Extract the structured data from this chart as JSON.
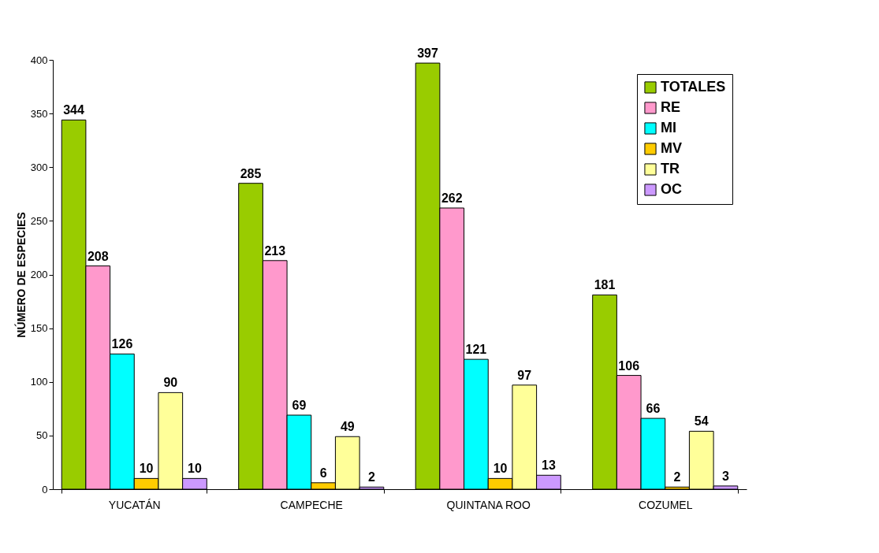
{
  "chart_data": {
    "type": "bar",
    "ylabel": "NÚMERO DE ESPECIES",
    "categories": [
      "YUCATÁN",
      "CAMPECHE",
      "QUINTANA ROO",
      "COZUMEL"
    ],
    "series": [
      {
        "name": "TOTALES",
        "color": "#99cc00",
        "values": [
          344,
          285,
          397,
          181
        ]
      },
      {
        "name": "RE",
        "color": "#ff99cc",
        "values": [
          208,
          213,
          262,
          106
        ]
      },
      {
        "name": "MI",
        "color": "#00ffff",
        "values": [
          126,
          69,
          121,
          66
        ]
      },
      {
        "name": "MV",
        "color": "#ffcc00",
        "values": [
          10,
          6,
          10,
          2
        ]
      },
      {
        "name": "TR",
        "color": "#ffff99",
        "values": [
          90,
          49,
          97,
          54
        ]
      },
      {
        "name": "OC",
        "color": "#cc99ff",
        "values": [
          10,
          2,
          13,
          3
        ]
      }
    ],
    "ylim": [
      0,
      400
    ],
    "yticks": [
      0,
      50,
      100,
      150,
      200,
      250,
      300,
      350,
      400
    ],
    "grid": false,
    "legend": "top right",
    "data_labels": true
  }
}
